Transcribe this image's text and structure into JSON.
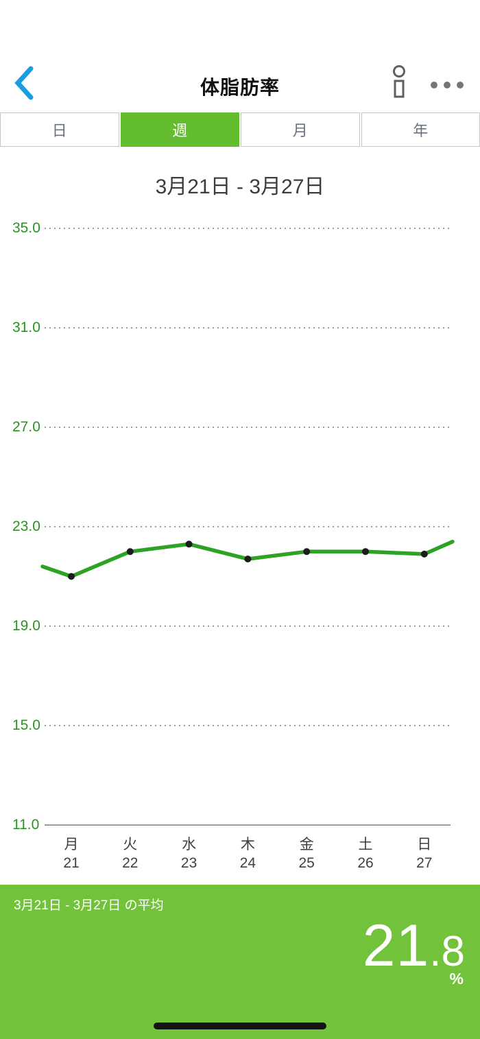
{
  "header": {
    "title": "体脂肪率"
  },
  "tabs": [
    {
      "id": "day",
      "label": "日",
      "selected": false
    },
    {
      "id": "week",
      "label": "週",
      "selected": true
    },
    {
      "id": "month",
      "label": "月",
      "selected": false
    },
    {
      "id": "year",
      "label": "年",
      "selected": false
    }
  ],
  "period_title": "3月21日 - 3月27日",
  "chart_data": {
    "type": "line",
    "title": "3月21日 - 3月27日",
    "categories": [
      "月",
      "火",
      "水",
      "木",
      "金",
      "土",
      "日"
    ],
    "category_dates": [
      "21",
      "22",
      "23",
      "24",
      "25",
      "26",
      "27"
    ],
    "values": [
      21.0,
      22.0,
      22.3,
      21.7,
      22.0,
      22.0,
      21.9
    ],
    "edge_values": {
      "before_start": 21.4,
      "after_end": 22.4
    },
    "yticks": [
      35.0,
      31.0,
      27.0,
      23.0,
      19.0,
      15.0,
      11.0
    ],
    "ylim": [
      11.0,
      35.0
    ],
    "grid": "dotted-horizontal",
    "legend": "none",
    "unit": "%"
  },
  "summary": {
    "label": "3月21日 - 3月27日 の平均",
    "value": "21.8",
    "value_int": "21",
    "value_dec": ".8",
    "unit": "%"
  },
  "colors": {
    "back_blue": "#1b9de2",
    "tab_selected_green": "#63bd2f",
    "banner_green": "#73c23c",
    "axis_label_green": "#28941f",
    "line_green": "#2ea224",
    "point_dark": "#1c1c1c",
    "grid_gray": "#9b9b9b",
    "tab_text_gray": "#68727e",
    "icon_gray": "#616161"
  }
}
